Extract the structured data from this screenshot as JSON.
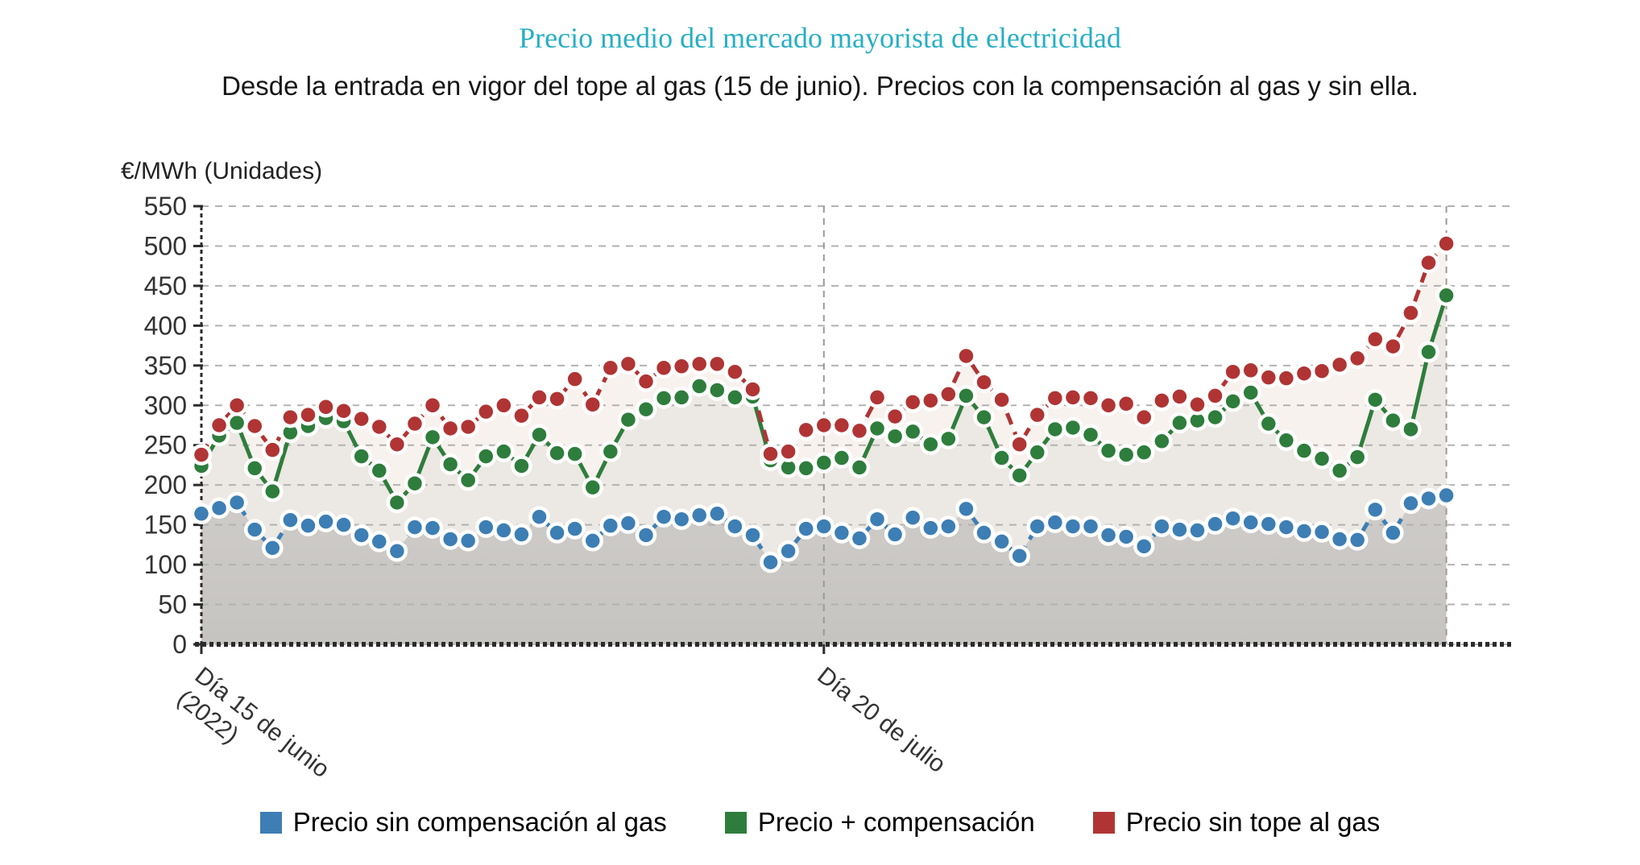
{
  "header": {
    "title": "Precio medio del mercado mayorista de electricidad",
    "subtitle": "Desde la entrada en vigor del tope al gas (15 de junio). Precios con la compensación al gas y sin ella."
  },
  "colors": {
    "title_accent": "#27afc4",
    "grid": "#b2b2b2",
    "axis": "#2b2b2b",
    "tick_text": "#333333",
    "area_under_red": "#f8f2ef",
    "area_under_green": "#ece8e3",
    "area_under_blue_top": "#dedad6",
    "area_under_blue_bottom": "#c6c4c1"
  },
  "chart_data": {
    "type": "line",
    "title": "Precio medio del mercado mayorista de electricidad",
    "subtitle": "Desde la entrada en vigor del tope al gas (15 de junio). Precios con la compensación al gas y sin ella.",
    "ylabel": "€/MWh (Unidades)",
    "xlabel": "",
    "ylim": [
      0,
      550
    ],
    "ytick_step": 50,
    "ytick_labels": [
      "550",
      "500",
      "450",
      "400",
      "350",
      "300",
      "250",
      "200",
      "150",
      "100",
      "50",
      "0"
    ],
    "n_points": 71,
    "x_unit": "days",
    "x_tick_labels": [
      {
        "index": 0,
        "line1": "Día 15 de junio",
        "line2": "(2022)"
      },
      {
        "index": 35,
        "line1": "Día 20 de julio",
        "line2": ""
      }
    ],
    "grid": "horizontal-dashed",
    "legend_position": "bottom",
    "series": [
      {
        "name": "Precio sin compensación al gas",
        "color": "#3d7eb4",
        "line_style": "dashed",
        "values": [
          164,
          171,
          178,
          144,
          121,
          156,
          149,
          154,
          150,
          137,
          129,
          117,
          147,
          146,
          132,
          130,
          147,
          143,
          138,
          160,
          140,
          145,
          130,
          149,
          152,
          137,
          160,
          157,
          162,
          164,
          148,
          137,
          103,
          117,
          145,
          148,
          140,
          133,
          157,
          138,
          159,
          146,
          148,
          170,
          140,
          129,
          111,
          148,
          153,
          148,
          148,
          137,
          135,
          123,
          148,
          144,
          143,
          151,
          158,
          153,
          151,
          147,
          142,
          141,
          132,
          131,
          169,
          140,
          177,
          183,
          187
        ]
      },
      {
        "name": "Precio + compensación",
        "color": "#2e7d3c",
        "line_style": "solid",
        "values": [
          224,
          262,
          278,
          221,
          192,
          266,
          274,
          284,
          280,
          236,
          218,
          178,
          202,
          260,
          226,
          206,
          236,
          242,
          224,
          263,
          240,
          239,
          197,
          242,
          282,
          295,
          309,
          310,
          324,
          319,
          310,
          311,
          231,
          222,
          221,
          228,
          234,
          222,
          271,
          261,
          267,
          251,
          258,
          312,
          285,
          234,
          212,
          241,
          270,
          272,
          263,
          243,
          238,
          241,
          255,
          278,
          281,
          285,
          305,
          316,
          277,
          256,
          243,
          233,
          218,
          235,
          307,
          281,
          270,
          367,
          438
        ]
      },
      {
        "name": "Precio sin tope al gas",
        "color": "#b03434",
        "line_style": "dashed",
        "values": [
          238,
          275,
          300,
          274,
          244,
          285,
          288,
          298,
          293,
          283,
          273,
          251,
          277,
          300,
          271,
          273,
          292,
          300,
          287,
          310,
          308,
          333,
          301,
          347,
          352,
          330,
          347,
          349,
          352,
          352,
          342,
          320,
          239,
          242,
          269,
          275,
          275,
          268,
          310,
          286,
          304,
          306,
          314,
          362,
          329,
          307,
          251,
          288,
          309,
          310,
          309,
          300,
          302,
          285,
          306,
          311,
          301,
          312,
          342,
          344,
          335,
          334,
          340,
          343,
          351,
          359,
          383,
          374,
          416,
          479,
          503
        ]
      }
    ]
  }
}
